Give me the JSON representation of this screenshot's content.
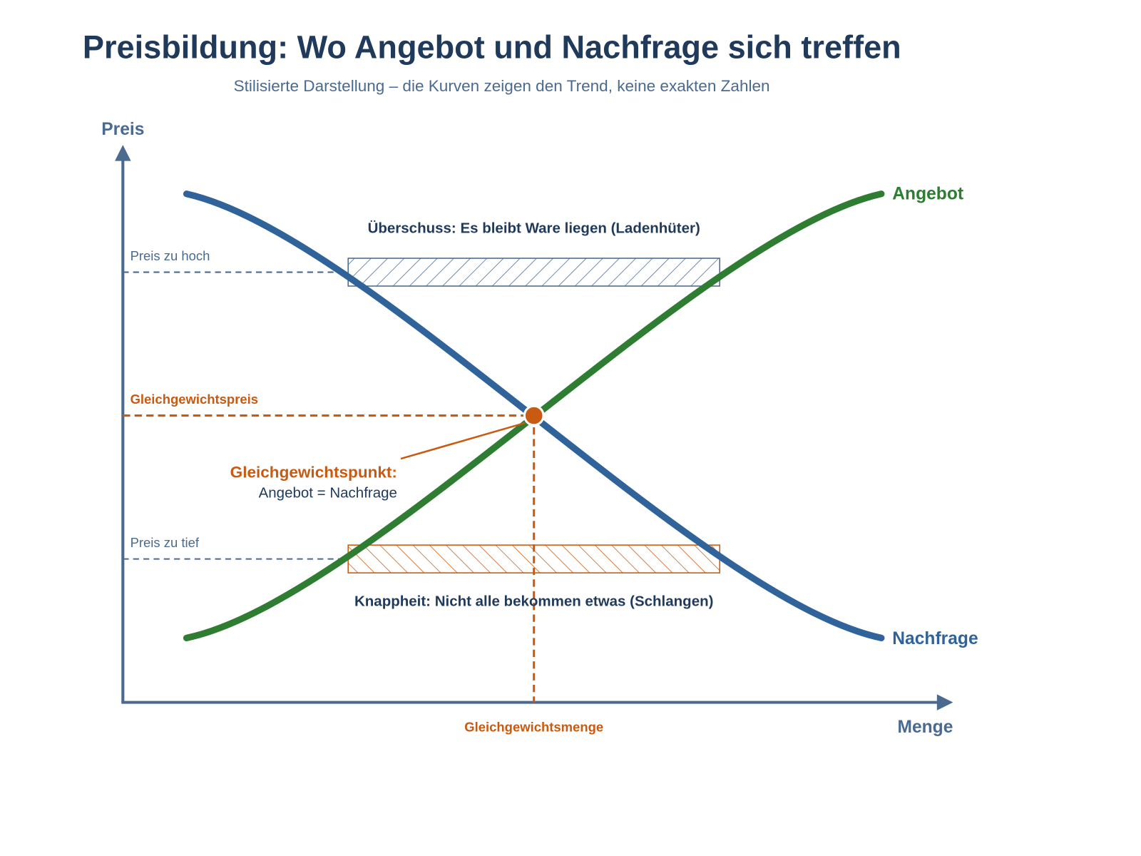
{
  "header": {
    "title": "Preisbildung: Wo Angebot und Nachfrage sich treffen",
    "subtitle": "Stilisierte Darstellung – die Kurven zeigen den Trend, keine exakten Zahlen"
  },
  "axes": {
    "y_label": "Preis",
    "x_label": "Menge"
  },
  "curves": {
    "supply": "Angebot",
    "demand": "Nachfrage"
  },
  "zones": {
    "surplus": "Überschuss: Es bleibt Ware liegen (Ladenhüter)",
    "shortage": "Knappheit: Nicht alle bekommen etwas (Schlangen)"
  },
  "price_levels": {
    "high": "Preis zu hoch",
    "low": "Preis zu tief",
    "equilibrium": "Gleichgewichtspreis"
  },
  "equilibrium": {
    "point_title": "Gleichgewichtspunkt:",
    "point_text": "Angebot = Nachfrage",
    "quantity": "Gleichgewichtsmenge"
  }
}
